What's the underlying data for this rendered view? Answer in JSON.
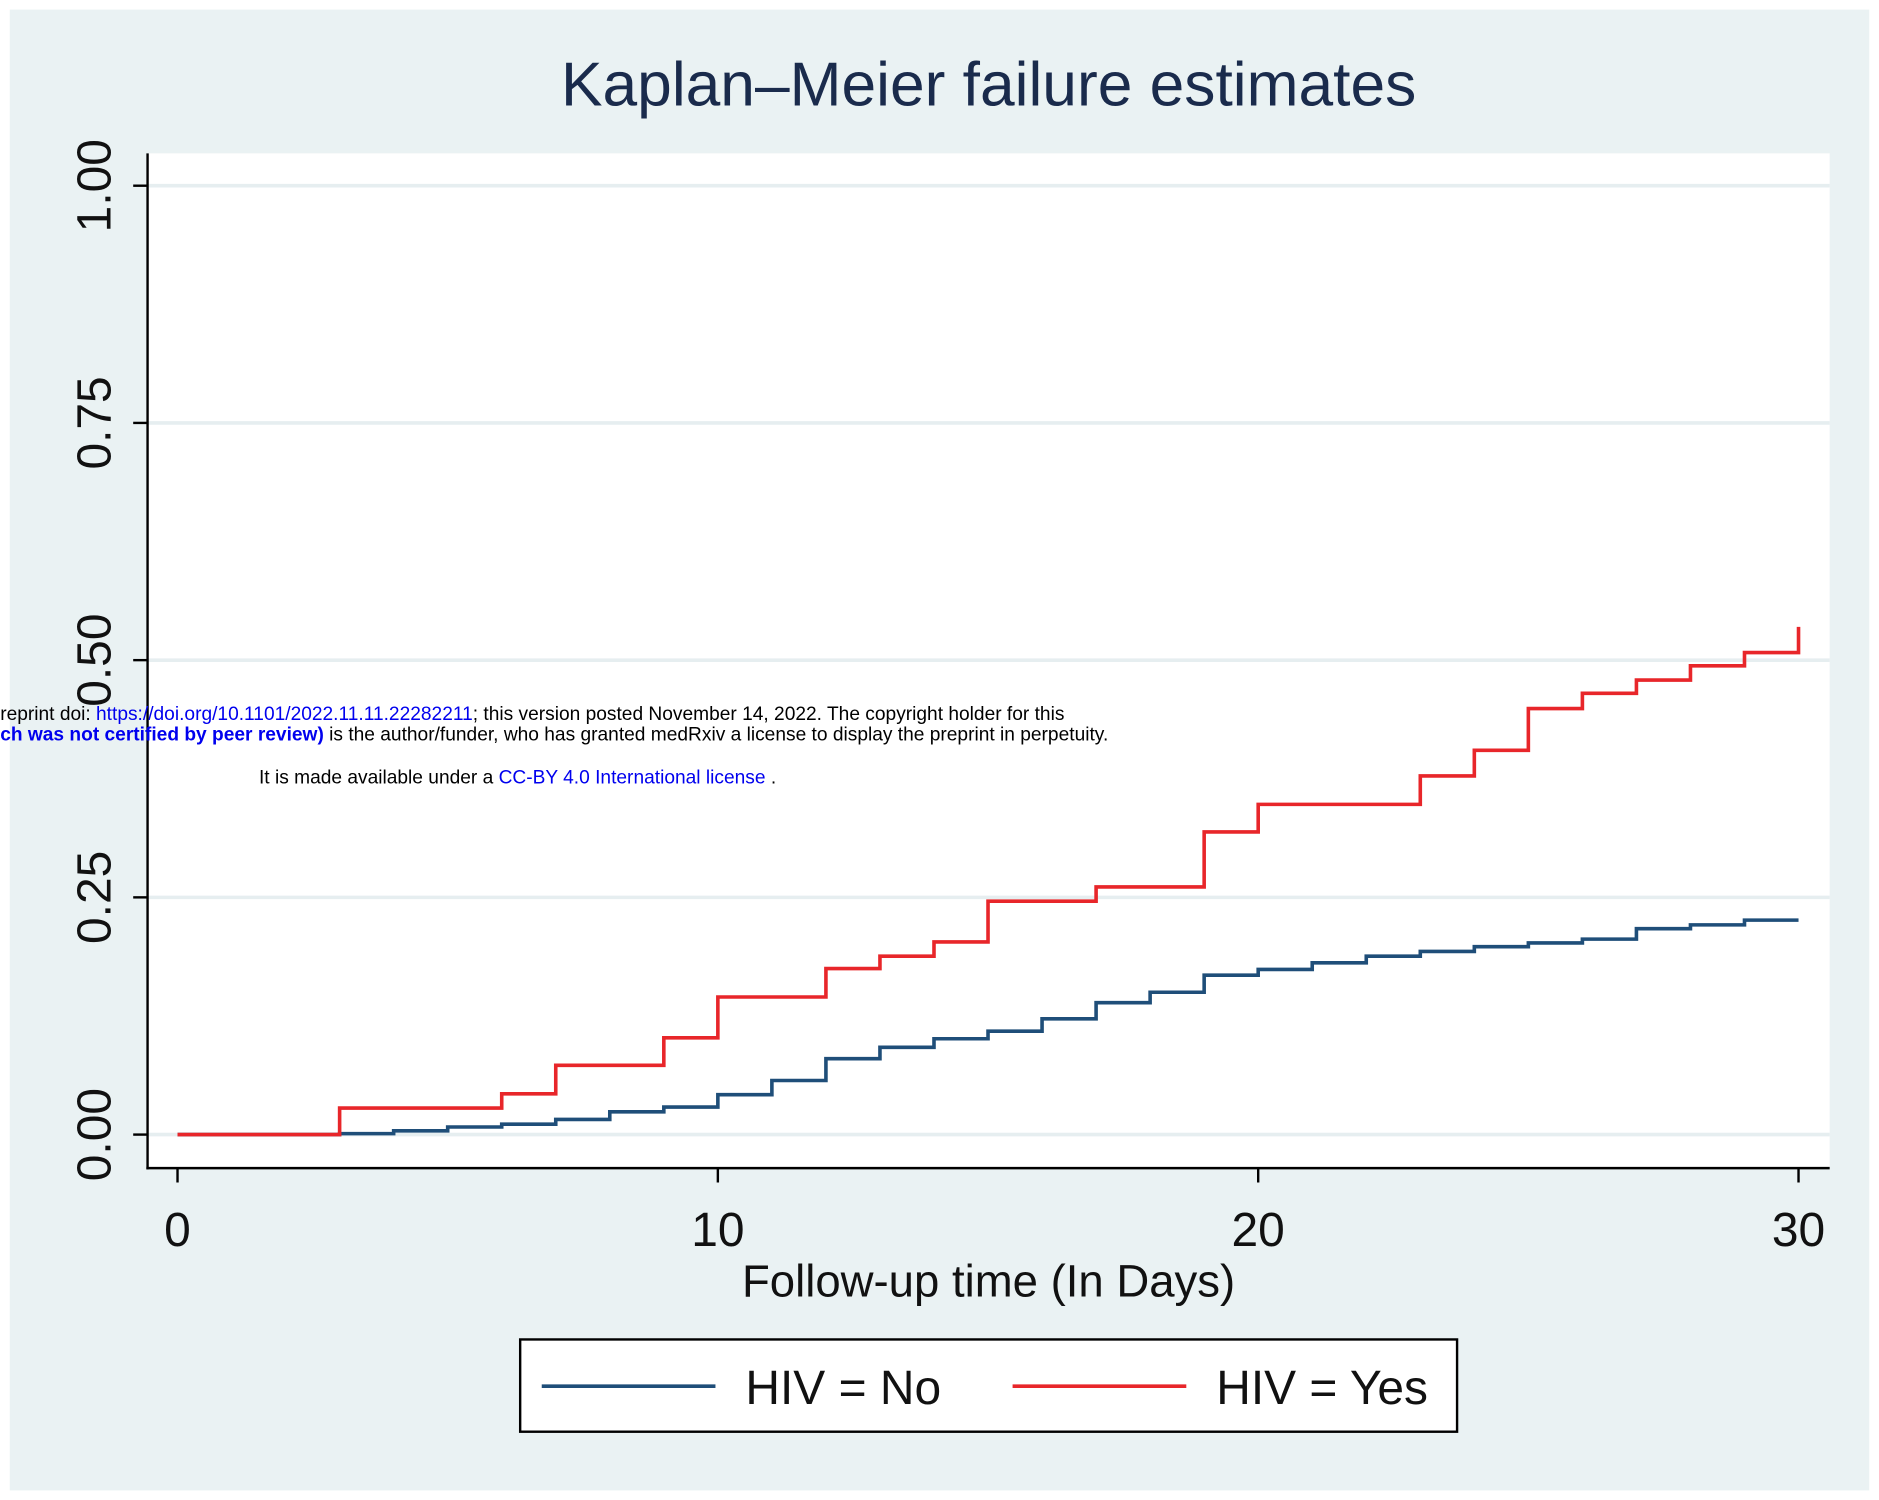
{
  "chart_data": {
    "type": "step",
    "title": "Kaplan–Meier failure estimates",
    "x_label": "Follow-up time (In Days)",
    "xlim": [
      0,
      30
    ],
    "xticks": [
      0,
      10,
      20,
      30
    ],
    "ylim": [
      0,
      1
    ],
    "yticks": [
      {
        "value": 0,
        "label": "0.00"
      },
      {
        "value": 0.25,
        "label": "0.25"
      },
      {
        "value": 0.5,
        "label": "0.50"
      },
      {
        "value": 0.75,
        "label": "0.75"
      },
      {
        "value": 1,
        "label": "1.00"
      }
    ],
    "grid": true,
    "legend": "bottom",
    "series": [
      {
        "name": "HIV = No",
        "color": "#1f4e79",
        "x": [
          0,
          3,
          4,
          5,
          6,
          7,
          8,
          9,
          10,
          11,
          12,
          13,
          14,
          15,
          16,
          17,
          18,
          19,
          20,
          21,
          22,
          23,
          24,
          25,
          26,
          27,
          28,
          29,
          30
        ],
        "values": [
          0,
          0.001,
          0.004,
          0.008,
          0.011,
          0.016,
          0.024,
          0.029,
          0.042,
          0.057,
          0.08,
          0.092,
          0.101,
          0.109,
          0.122,
          0.139,
          0.15,
          0.168,
          0.174,
          0.181,
          0.188,
          0.193,
          0.198,
          0.202,
          0.206,
          0.217,
          0.221,
          0.226,
          0.226
        ]
      },
      {
        "name": "HIV = Yes",
        "color": "#e8262a",
        "x": [
          0,
          3,
          6,
          7,
          9,
          10,
          12,
          13,
          14,
          15,
          17,
          19,
          20,
          23,
          24,
          25,
          26,
          27,
          28,
          29,
          30
        ],
        "values": [
          0,
          0.028,
          0.043,
          0.073,
          0.102,
          0.145,
          0.175,
          0.188,
          0.203,
          0.246,
          0.261,
          0.319,
          0.348,
          0.378,
          0.405,
          0.449,
          0.465,
          0.479,
          0.494,
          0.508,
          0.535
        ]
      }
    ]
  },
  "watermark": [
    [
      "reprint doi: ",
      "https://doi.org/10.1101/2022.11.11.22282211",
      "; this version posted November 14, 2022. The copyright holder for this"
    ],
    [
      "ch was not certified by peer review)",
      " is the author/funder, who has granted medRxiv a license to display the preprint in perpetuity."
    ],
    [
      "It is made available under a ",
      "CC-BY 4.0 International license",
      " ."
    ]
  ]
}
